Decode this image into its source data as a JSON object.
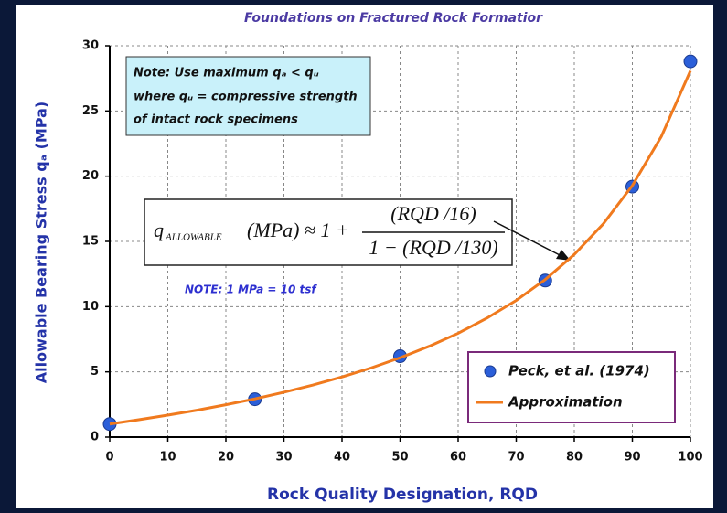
{
  "chart_data": {
    "type": "line",
    "title": "Foundations on Fractured Rock Formatior",
    "x_label": "Rock Quality Designation, RQD",
    "y_label": "Allowable Bearing Stress qₐ (MPa)",
    "xlim": [
      0,
      100
    ],
    "ylim": [
      0,
      30
    ],
    "xticks": [
      0,
      10,
      20,
      30,
      40,
      50,
      60,
      70,
      80,
      90,
      100
    ],
    "yticks": [
      0,
      5,
      10,
      15,
      20,
      25,
      30
    ],
    "grid": true,
    "legend": "lower right",
    "series": [
      {
        "name": "Peck, et al. (1974)",
        "type": "scatter",
        "color": "#2b5fd9",
        "x": [
          0,
          25,
          50,
          75,
          90,
          100
        ],
        "values": [
          1.0,
          2.9,
          6.2,
          12.0,
          19.2,
          28.8
        ]
      },
      {
        "name": "Approximation",
        "type": "line",
        "color": "#f07a1e",
        "x": [
          0,
          5,
          10,
          15,
          20,
          25,
          30,
          35,
          40,
          45,
          50,
          55,
          60,
          65,
          70,
          75,
          80,
          85,
          90,
          95,
          100
        ],
        "values": [
          1.0,
          1.33,
          1.68,
          2.06,
          2.48,
          2.93,
          3.44,
          3.99,
          4.61,
          5.3,
          6.08,
          6.96,
          7.96,
          9.13,
          10.48,
          12.08,
          14.0,
          16.35,
          19.28,
          23.05,
          28.08
        ]
      }
    ],
    "annotations": {
      "note_lines": [
        "Note:  Use maximum qₐ < qᵤ",
        "where qᵤ = compressive strength",
        "of intact rock specimens"
      ],
      "formula": {
        "lhs": "q",
        "sub": "ALLOWABLE",
        "mid": "(MPa) ≈ 1 +",
        "numerator": "(RQD /16)",
        "denominator": "1 − (RQD /130)"
      },
      "unit_note": "NOTE:  1 MPa = 10 tsf"
    }
  }
}
